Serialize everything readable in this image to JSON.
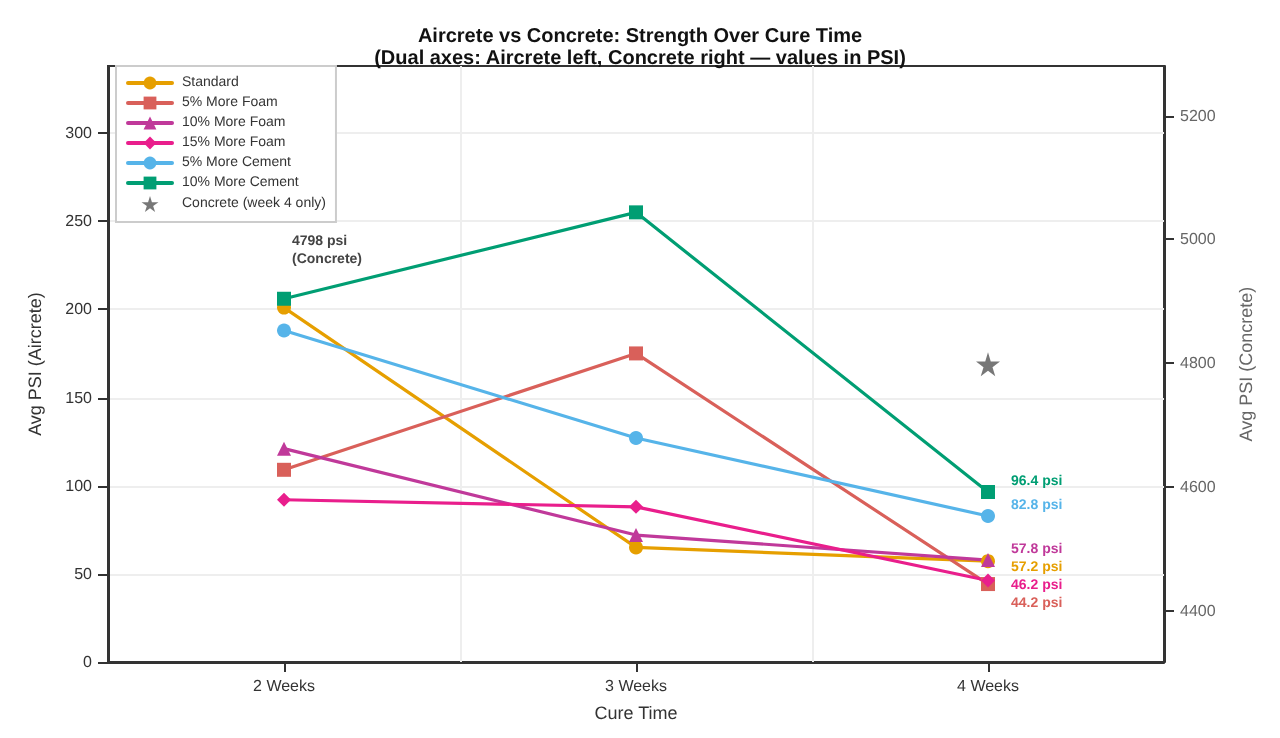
{
  "chart_data": {
    "type": "line",
    "title": "Aircrete vs Concrete: Strength Over Cure Time",
    "subtitle": "(Dual axes: Aircrete left, Concrete right — values in PSI)",
    "xlabel": "Cure Time",
    "ylabel": "Avg PSI (Aircrete)",
    "y2label": "Avg PSI (Concrete)",
    "categories": [
      "2 Weeks",
      "3 Weeks",
      "4 Weeks"
    ],
    "series": [
      {
        "name": "Standard",
        "color": "#e69f00",
        "marker": "circle",
        "values": [
          201,
          65,
          57.2
        ],
        "value_labels": [
          null,
          null,
          "57.2 psi"
        ]
      },
      {
        "name": "5% More Foam",
        "color": "#d9605a",
        "marker": "square",
        "values": [
          109,
          175,
          44.2
        ],
        "value_labels": [
          null,
          null,
          "44.2 psi"
        ]
      },
      {
        "name": "10% More Foam",
        "color": "#c0399a",
        "marker": "triangle",
        "values": [
          121,
          72,
          57.8
        ],
        "value_labels": [
          null,
          null,
          "57.8 psi"
        ]
      },
      {
        "name": "15% More Foam",
        "color": "#e91e8c",
        "marker": "diamond",
        "values": [
          92,
          88,
          46.2
        ],
        "value_labels": [
          null,
          null,
          "46.2 psi"
        ]
      },
      {
        "name": "5% More Cement",
        "color": "#56b4e9",
        "marker": "circle",
        "values": [
          188,
          127,
          82.8
        ],
        "value_labels": [
          null,
          null,
          "82.8 psi"
        ]
      },
      {
        "name": "10% More Cement",
        "color": "#009e73",
        "marker": "square",
        "values": [
          206,
          255,
          96.4
        ],
        "value_labels": [
          null,
          null,
          "96.4 psi"
        ]
      },
      {
        "name": "Concrete (week 4 only)",
        "type": "scatter",
        "color": "#555555",
        "marker": "star",
        "axis": "y2",
        "values": [
          null,
          null,
          4798
        ]
      }
    ],
    "ylim": [
      0,
      338
    ],
    "yticks": [
      0,
      50,
      100,
      150,
      200,
      250,
      300
    ],
    "y2lim": [
      4317,
      5280
    ],
    "y2ticks": [
      4400,
      4600,
      4800,
      5000,
      5200
    ],
    "annotations": [
      "4798 psi\n(Concrete)"
    ],
    "grid": true,
    "legend": "top left"
  }
}
